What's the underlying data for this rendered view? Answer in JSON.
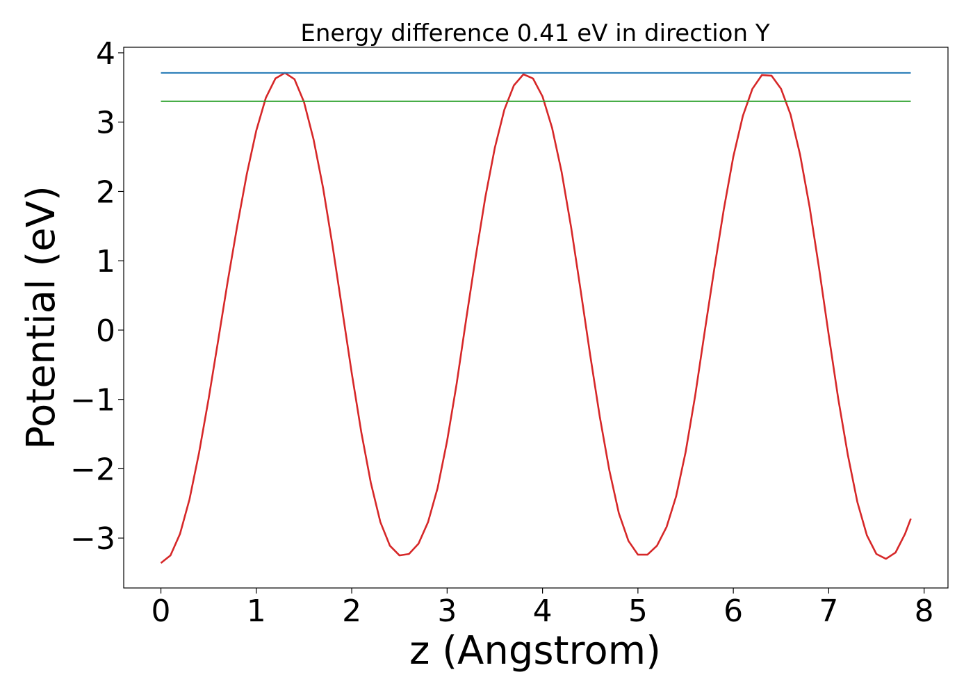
{
  "chart_data": {
    "type": "line",
    "title": "Energy difference 0.41 eV in direction Y",
    "xlabel": "z (Angstrom)",
    "ylabel": "Potential (eV)",
    "xlim": [
      -0.39,
      8.25
    ],
    "ylim": [
      -3.72,
      4.08
    ],
    "xticks": [
      0,
      1,
      2,
      3,
      4,
      5,
      6,
      7,
      8
    ],
    "xtick_labels": [
      "0",
      "1",
      "2",
      "3",
      "4",
      "5",
      "6",
      "7",
      "8"
    ],
    "yticks": [
      -3,
      -2,
      -1,
      0,
      1,
      2,
      3,
      4
    ],
    "ytick_labels": [
      "−3",
      "−2",
      "−1",
      "0",
      "1",
      "2",
      "3",
      "4"
    ],
    "grid": false,
    "series": [
      {
        "kind": "curve",
        "color": "#d62728",
        "x": [
          0,
          0.1,
          0.2,
          0.3,
          0.4,
          0.5,
          0.6,
          0.7,
          0.8,
          0.9,
          1.0,
          1.1,
          1.2,
          1.3,
          1.4,
          1.5,
          1.6,
          1.7,
          1.8,
          1.9,
          2.0,
          2.1,
          2.2,
          2.3,
          2.4,
          2.5,
          2.6,
          2.7,
          2.8,
          2.9,
          3.0,
          3.1,
          3.2,
          3.3,
          3.4,
          3.5,
          3.6,
          3.7,
          3.8,
          3.9,
          4.0,
          4.1,
          4.2,
          4.3,
          4.4,
          4.5,
          4.6,
          4.7,
          4.8,
          4.9,
          5.0,
          5.1,
          5.2,
          5.3,
          5.4,
          5.5,
          5.6,
          5.7,
          5.8,
          5.9,
          6.0,
          6.1,
          6.2,
          6.3,
          6.4,
          6.5,
          6.6,
          6.7,
          6.8,
          6.9,
          7.0,
          7.1,
          7.2,
          7.3,
          7.4,
          7.5,
          7.6,
          7.7,
          7.8,
          7.86
        ],
        "y": [
          -3.36,
          -3.25,
          -2.94,
          -2.44,
          -1.77,
          -0.99,
          -0.15,
          0.7,
          1.5,
          2.25,
          2.88,
          3.35,
          3.63,
          3.71,
          3.62,
          3.29,
          2.75,
          2.05,
          1.21,
          0.3,
          -0.62,
          -1.47,
          -2.2,
          -2.77,
          -3.11,
          -3.25,
          -3.23,
          -3.08,
          -2.77,
          -2.28,
          -1.6,
          -0.77,
          0.16,
          1.06,
          1.91,
          2.63,
          3.18,
          3.53,
          3.69,
          3.63,
          3.37,
          2.92,
          2.28,
          1.48,
          0.57,
          -0.36,
          -1.25,
          -2.02,
          -2.64,
          -3.04,
          -3.24,
          -3.24,
          -3.11,
          -2.84,
          -2.4,
          -1.76,
          -0.95,
          -0.02,
          0.88,
          1.74,
          2.5,
          3.09,
          3.48,
          3.68,
          3.67,
          3.48,
          3.11,
          2.53,
          1.77,
          0.88,
          -0.07,
          -0.99,
          -1.8,
          -2.48,
          -2.96,
          -3.23,
          -3.3,
          -3.21,
          -2.94,
          -2.72
        ]
      },
      {
        "kind": "hline",
        "color": "#1f77b4",
        "y": 3.71,
        "x": [
          0,
          7.86
        ]
      },
      {
        "kind": "hline",
        "color": "#2ca02c",
        "y": 3.3,
        "x": [
          0,
          7.86
        ]
      }
    ]
  }
}
